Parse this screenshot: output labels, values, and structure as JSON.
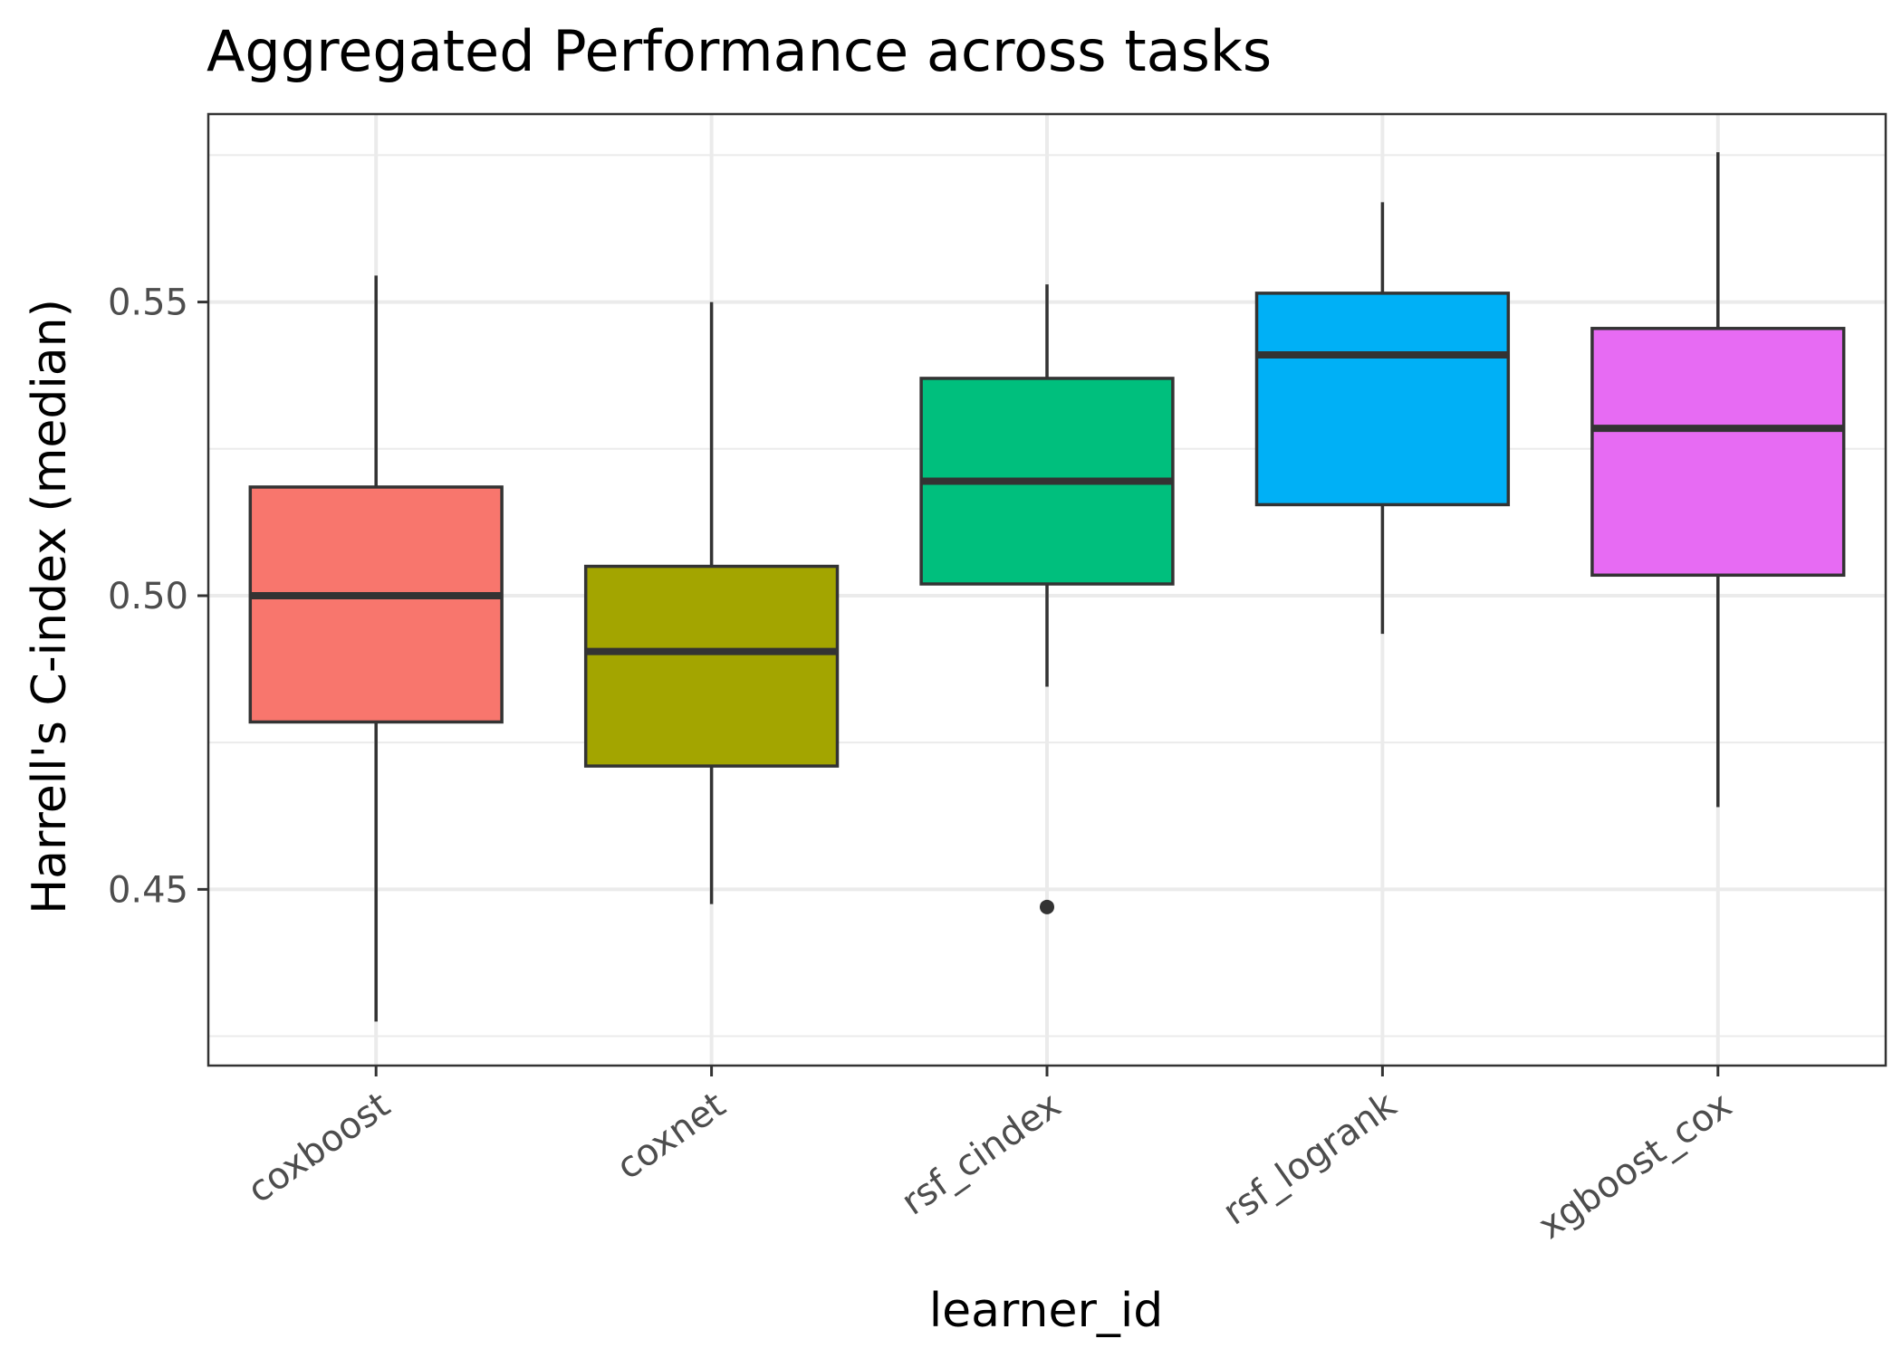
{
  "chart_data": {
    "type": "boxplot",
    "title": "Aggregated Performance across tasks",
    "xlabel": "learner_id",
    "ylabel": "Harrell's C-index (median)",
    "ylim": [
      0.42,
      0.582
    ],
    "yticks": [
      0.45,
      0.5,
      0.55
    ],
    "ytick_labels": [
      "0.45",
      "0.50",
      "0.55"
    ],
    "grid": true,
    "legend": "none",
    "categories": [
      "coxboost",
      "coxnet",
      "rsf_cindex",
      "rsf_logrank",
      "xgboost_cox"
    ],
    "boxes": [
      {
        "name": "coxboost",
        "whisker_low": 0.4275,
        "q1": 0.4785,
        "median": 0.5,
        "q3": 0.5185,
        "whisker_high": 0.5545,
        "outliers": [],
        "color": "#F8766D"
      },
      {
        "name": "coxnet",
        "whisker_low": 0.4475,
        "q1": 0.471,
        "median": 0.4905,
        "q3": 0.505,
        "whisker_high": 0.55,
        "outliers": [],
        "color": "#A3A500"
      },
      {
        "name": "rsf_cindex",
        "whisker_low": 0.4845,
        "q1": 0.502,
        "median": 0.5195,
        "q3": 0.537,
        "whisker_high": 0.553,
        "outliers": [
          0.447
        ],
        "color": "#00BF7D"
      },
      {
        "name": "rsf_logrank",
        "whisker_low": 0.4935,
        "q1": 0.5155,
        "median": 0.541,
        "q3": 0.5515,
        "whisker_high": 0.567,
        "outliers": [],
        "color": "#00B0F6"
      },
      {
        "name": "xgboost_cox",
        "whisker_low": 0.464,
        "q1": 0.5035,
        "median": 0.5285,
        "q3": 0.5455,
        "whisker_high": 0.5755,
        "outliers": [],
        "color": "#E76BF3"
      }
    ]
  }
}
